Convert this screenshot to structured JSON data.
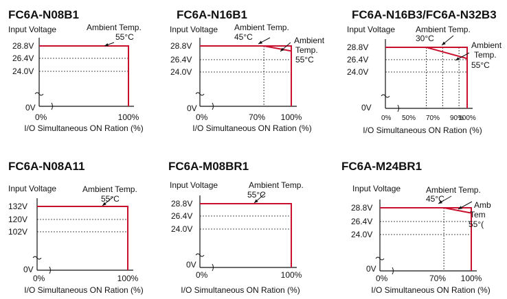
{
  "chart_data": [
    {
      "type": "line",
      "title": "FC6A-N08B1",
      "ylabel": "Input Voltage",
      "xlabel": "I/O Simultaneous ON Ration (%)",
      "y_ticks": [
        "28.8V",
        "26.4V",
        "24.0V"
      ],
      "y_min_label": "0V",
      "x_ticks": [
        "0%",
        "100%"
      ],
      "x_guides": [],
      "annotations": [
        {
          "text": [
            "Ambient Temp.",
            "55°C"
          ]
        }
      ],
      "series": [
        {
          "x": [
            0,
            100,
            100
          ],
          "y": [
            28.8,
            28.8,
            0
          ]
        }
      ]
    },
    {
      "type": "line",
      "title": "FC6A-N16B1",
      "ylabel": "Input Voltage",
      "xlabel": "I/O Simultaneous ON Ration (%)",
      "y_ticks": [
        "28.8V",
        "26.4V",
        "24.0V"
      ],
      "y_min_label": "0V",
      "x_ticks": [
        "0%",
        "70%",
        "100%"
      ],
      "x_guides": [
        70
      ],
      "annotations": [
        {
          "text": [
            "Ambient Temp.",
            "45°C"
          ]
        },
        {
          "text": [
            "Ambient",
            "Temp.",
            "55°C"
          ]
        }
      ],
      "series": [
        {
          "x": [
            0,
            100,
            100
          ],
          "y": [
            28.8,
            28.8,
            0
          ]
        },
        {
          "x": [
            70,
            100
          ],
          "y": [
            28.8,
            26.4
          ]
        }
      ]
    },
    {
      "type": "line",
      "title": "FC6A-N16B3/FC6A-N32B3",
      "ylabel": "Input Voltage",
      "xlabel": "I/O Simultaneous ON Ration (%)",
      "y_ticks": [
        "28.8V",
        "26.4V",
        "24.0V"
      ],
      "y_min_label": "0V",
      "x_ticks": [
        "0%",
        "50%",
        "70%",
        "90%",
        "100%"
      ],
      "x_guides": [
        50,
        70,
        90
      ],
      "annotations": [
        {
          "text": [
            "Ambient Temp.",
            "30°C"
          ]
        },
        {
          "text": [
            "Ambient",
            "Temp.",
            "55°C"
          ]
        }
      ],
      "series": [
        {
          "x": [
            0,
            100,
            100
          ],
          "y": [
            28.8,
            28.8,
            0
          ]
        },
        {
          "x": [
            50,
            100
          ],
          "y": [
            28.8,
            23.5
          ]
        }
      ]
    },
    {
      "type": "line",
      "title": "FC6A-N08A11",
      "ylabel": "Input Voltage",
      "xlabel": "I/O Simultaneous ON Ration (%)",
      "y_ticks": [
        "132V",
        "120V",
        "102V"
      ],
      "y_min_label": "0V",
      "x_ticks": [
        "0%",
        "100%"
      ],
      "x_guides": [],
      "annotations": [
        {
          "text": [
            "Ambient Temp.",
            "55°C"
          ]
        }
      ],
      "series": [
        {
          "x": [
            0,
            100,
            100
          ],
          "y": [
            132,
            132,
            0
          ]
        }
      ]
    },
    {
      "type": "line",
      "title": "FC6A-M08BR1",
      "ylabel": "Input Voltage",
      "xlabel": "I/O Simultaneous ON Ration (%)",
      "y_ticks": [
        "28.8V",
        "26.4V",
        "24.0V"
      ],
      "y_min_label": "0V",
      "x_ticks": [
        "0%",
        "100%"
      ],
      "x_guides": [],
      "annotations": [
        {
          "text": [
            "Ambient Temp.",
            "55°C"
          ]
        }
      ],
      "series": [
        {
          "x": [
            0,
            100,
            100
          ],
          "y": [
            28.8,
            28.8,
            0
          ]
        }
      ]
    },
    {
      "type": "line",
      "title": "FC6A-M24BR1",
      "ylabel": "Input Voltage",
      "xlabel": "I/O Simultaneous ON Ration (%)",
      "y_ticks": [
        "28.8V",
        "26.4V",
        "24.0V"
      ],
      "y_min_label": "0V",
      "x_ticks": [
        "0%",
        "70%",
        "100%"
      ],
      "x_guides": [
        70
      ],
      "annotations": [
        {
          "text": [
            "Ambient Temp.",
            "45°C"
          ]
        },
        {
          "text": [
            "Amb",
            "Tem",
            "55°("
          ]
        }
      ],
      "series": [
        {
          "x": [
            0,
            100,
            100
          ],
          "y": [
            28.8,
            28.8,
            0
          ]
        },
        {
          "x": [
            70,
            100
          ],
          "y": [
            28.8,
            26.4
          ]
        }
      ]
    }
  ],
  "colors": {
    "curve": "#c8102e",
    "axis": "#111111"
  }
}
